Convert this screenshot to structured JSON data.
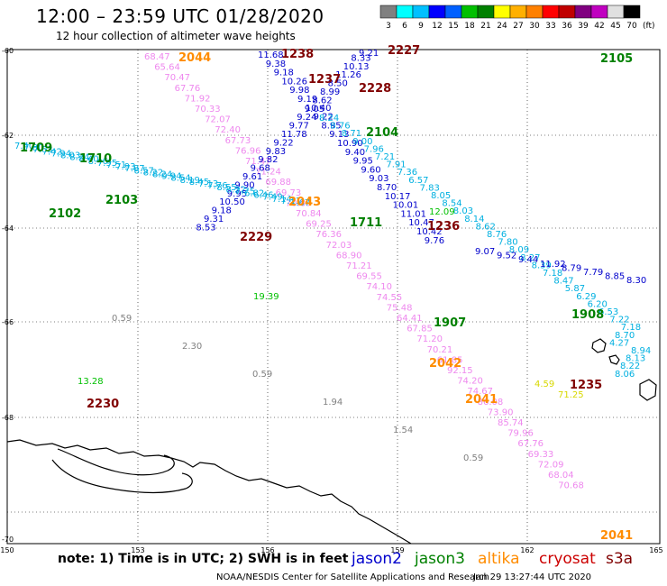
{
  "header": {
    "title": "12:00  –  23:59  UTC  01/28/2020",
    "subtitle": "12 hour collection of altimeter wave heights"
  },
  "legend": {
    "unit": "(ft)",
    "colors": [
      "#808080",
      "#00ffff",
      "#00c0ff",
      "#0000ff",
      "#0060ff",
      "#00c000",
      "#008000",
      "#ffff00",
      "#ffb000",
      "#ff8000",
      "#ff0000",
      "#c00000",
      "#800080",
      "#c000c0",
      "#e0e0e0",
      "#000000"
    ],
    "labels": [
      "3",
      "6",
      "9",
      "12",
      "15",
      "18",
      "21",
      "24",
      "27",
      "30",
      "33",
      "36",
      "39",
      "42",
      "45",
      "70"
    ]
  },
  "axes": {
    "lon_labels": [
      "150",
      "153",
      "156",
      "159",
      "162",
      "165"
    ],
    "lat_labels": [
      "-60",
      "-62",
      "-64",
      "-66",
      "-68",
      "-70"
    ]
  },
  "footer": {
    "note": "note:  1) Time is in UTC;  2) SWH is in feet",
    "credit": "NOAA/NESDIS Center for Satellite Applications and Research",
    "timestamp": "Jan 29 13:27:44 UTC 2020"
  },
  "satellites": [
    {
      "name": "jason2",
      "color": "#0000cc"
    },
    {
      "name": "jason3",
      "color": "#008000"
    },
    {
      "name": "altika",
      "color": "#ff8c00"
    },
    {
      "name": "cryosat",
      "color": "#cc0000"
    },
    {
      "name": "s3a",
      "color": "#800000"
    }
  ],
  "track_labels": [
    {
      "text": "2044",
      "color": "#ff8c00"
    },
    {
      "text": "1238",
      "color": "#800000"
    },
    {
      "text": "2227",
      "color": "#800000"
    },
    {
      "text": "2105",
      "color": "#008000"
    },
    {
      "text": "1237",
      "color": "#800000"
    },
    {
      "text": "2228",
      "color": "#800000"
    },
    {
      "text": "1709",
      "color": "#008000"
    },
    {
      "text": "1710",
      "color": "#008000"
    },
    {
      "text": "2104",
      "color": "#008000"
    },
    {
      "text": "2103",
      "color": "#008000"
    },
    {
      "text": "2102",
      "color": "#008000"
    },
    {
      "text": "2043",
      "color": "#ff8c00"
    },
    {
      "text": "1711",
      "color": "#008000"
    },
    {
      "text": "1236",
      "color": "#800000"
    },
    {
      "text": "2229",
      "color": "#800000"
    },
    {
      "text": "1907",
      "color": "#008000"
    },
    {
      "text": "1908",
      "color": "#008000"
    },
    {
      "text": "2042",
      "color": "#ff8c00"
    },
    {
      "text": "1235",
      "color": "#800000"
    },
    {
      "text": "2041",
      "color": "#ff8c00"
    },
    {
      "text": "2230",
      "color": "#800000"
    },
    {
      "text": "2041",
      "color": "#ff8c00"
    }
  ],
  "tracks": [
    {
      "color": "#ee88ee",
      "values": [
        "68.47",
        "65.64",
        "70.47",
        "67.76",
        "71.92",
        "70.33",
        "72.07",
        "72.40",
        "67.73",
        "76.96",
        "71.47",
        "71.24",
        "69.88",
        "69.73",
        "70.89",
        "70.84",
        "69.25",
        "76.36",
        "72.03",
        "68.90",
        "71.21",
        "69.55",
        "74.10",
        "74.55",
        "75.48",
        "64.41",
        "67.85",
        "71.20",
        "70.21",
        "61.85",
        "92.15",
        "74.20",
        "74.67",
        "86.08",
        "73.90",
        "85.74",
        "79.96",
        "67.76",
        "69.33",
        "72.09",
        "68.04",
        "70.68"
      ]
    },
    {
      "color": "#0000cc",
      "values": [
        "11.68",
        "9.38",
        "9.18",
        "10.26",
        "9.98",
        "9.19",
        "10.40",
        "9.22",
        "8.95",
        "9.13",
        "10.90",
        "9.40",
        "9.95",
        "9.60",
        "9.03",
        "8.70",
        "10.17",
        "10.01",
        "11.01",
        "10.47",
        "10.42",
        "9.76"
      ]
    },
    {
      "color": "#0000cc",
      "values": [
        "9.21",
        "8.33",
        "10.13",
        "11.26",
        "8.50",
        "8.99",
        "8.62",
        "9.05",
        "9.24",
        "9.77",
        "11.78",
        "9.22",
        "9.83",
        "9.82",
        "9.68",
        "9.61",
        "9.90",
        "9.95",
        "10.50",
        "9.18",
        "9.31",
        "8.53"
      ]
    },
    {
      "color": "#00b0e0",
      "values": [
        "7.40",
        "7.80",
        "7.63",
        "7.42",
        "7.94",
        "8.03",
        "8.24",
        "8.40",
        "8.46",
        "7.95",
        "7.51",
        "7.93",
        "7.87",
        "8.57",
        "8.22",
        "8.24",
        "9.94",
        "8.54",
        "8.19",
        "8.45",
        "7.13",
        "7.76",
        "8.55",
        "8.22",
        "7.75",
        "6.82",
        "6.46",
        "7.49",
        "7.14",
        "7.11",
        "7.67"
      ]
    },
    {
      "color": "#00b0e0",
      "values": [
        "8.24",
        "8.76",
        "8.71",
        "9.00",
        "7.96",
        "7.21",
        "7.91",
        "7.36",
        "6.57",
        "7.83",
        "8.05",
        "8.54",
        "8.03",
        "8.14",
        "8.62",
        "8.76",
        "7.80",
        "8.09",
        "8.27",
        "8.39",
        "7.18",
        "8.47",
        "5.87",
        "6.29",
        "6.20",
        "6.53",
        "7.22",
        "7.18",
        "8.70",
        "4.27",
        "8.94",
        "8.13",
        "8.22",
        "8.06"
      ]
    },
    {
      "color": "#0000cc",
      "values": [
        "9.07",
        "9.52",
        "9.44",
        "11.92",
        "8.79",
        "7.79",
        "8.85",
        "8.30"
      ]
    },
    {
      "color": "#808080",
      "values": [
        "0.59",
        "2.30",
        "0.59",
        "1.94",
        "1.54",
        "0.59"
      ]
    },
    {
      "color": "#00c000",
      "values": [
        "13.28",
        "19.39",
        "12.09"
      ]
    },
    {
      "color": "#d8d800",
      "values": [
        "4.59",
        "71.25"
      ]
    }
  ]
}
